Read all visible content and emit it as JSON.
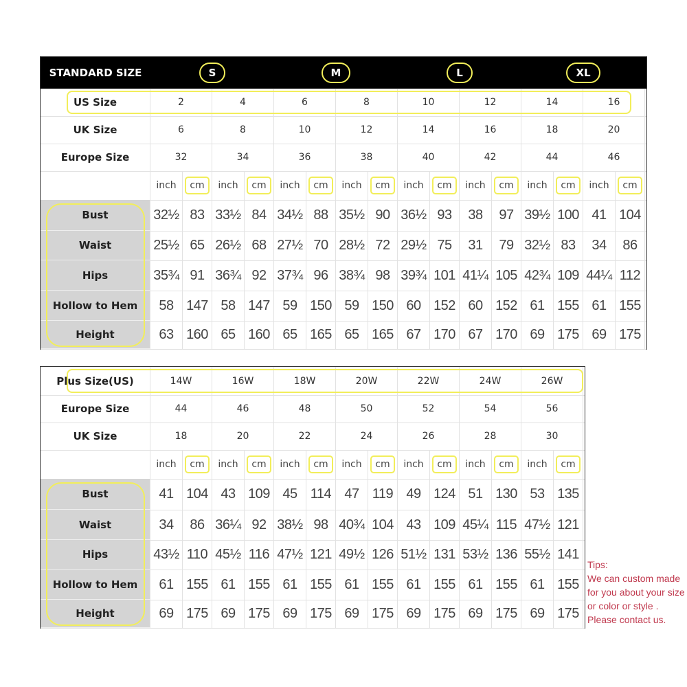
{
  "standard": {
    "header_title": "STANDARD SIZE",
    "size_groups": [
      "S",
      "M",
      "L",
      "XL"
    ],
    "size_rows": [
      {
        "label": "US Size",
        "values": [
          "2",
          "4",
          "6",
          "8",
          "10",
          "12",
          "14",
          "16"
        ]
      },
      {
        "label": "UK Size",
        "values": [
          "6",
          "8",
          "10",
          "12",
          "14",
          "16",
          "18",
          "20"
        ]
      },
      {
        "label": "Europe Size",
        "values": [
          "32",
          "34",
          "36",
          "38",
          "40",
          "42",
          "44",
          "46"
        ]
      }
    ],
    "unit_labels": {
      "inch": "inch",
      "cm": "cm"
    },
    "measure_rows": [
      {
        "label": "Bust",
        "values": [
          "32½",
          "83",
          "33½",
          "84",
          "34½",
          "88",
          "35½",
          "90",
          "36½",
          "93",
          "38",
          "97",
          "39½",
          "100",
          "41",
          "104"
        ]
      },
      {
        "label": "Waist",
        "values": [
          "25½",
          "65",
          "26½",
          "68",
          "27½",
          "70",
          "28½",
          "72",
          "29½",
          "75",
          "31",
          "79",
          "32½",
          "83",
          "34",
          "86"
        ]
      },
      {
        "label": "Hips",
        "values": [
          "35¾",
          "91",
          "36¾",
          "92",
          "37¾",
          "96",
          "38¾",
          "98",
          "39¾",
          "101",
          "41¼",
          "105",
          "42¾",
          "109",
          "44¼",
          "112"
        ]
      },
      {
        "label": "Hollow to Hem",
        "values": [
          "58",
          "147",
          "58",
          "147",
          "59",
          "150",
          "59",
          "150",
          "60",
          "152",
          "60",
          "152",
          "61",
          "155",
          "61",
          "155"
        ]
      },
      {
        "label": "Height",
        "values": [
          "63",
          "160",
          "65",
          "160",
          "65",
          "165",
          "65",
          "165",
          "67",
          "170",
          "67",
          "170",
          "69",
          "175",
          "69",
          "175"
        ]
      }
    ]
  },
  "plus": {
    "size_rows": [
      {
        "label": "Plus Size(US)",
        "values": [
          "14W",
          "16W",
          "18W",
          "20W",
          "22W",
          "24W",
          "26W"
        ]
      },
      {
        "label": "Europe Size",
        "values": [
          "44",
          "46",
          "48",
          "50",
          "52",
          "54",
          "56"
        ]
      },
      {
        "label": "UK Size",
        "values": [
          "18",
          "20",
          "22",
          "24",
          "26",
          "28",
          "30"
        ]
      }
    ],
    "unit_labels": {
      "inch": "inch",
      "cm": "cm"
    },
    "measure_rows": [
      {
        "label": "Bust",
        "values": [
          "41",
          "104",
          "43",
          "109",
          "45",
          "114",
          "47",
          "119",
          "49",
          "124",
          "51",
          "130",
          "53",
          "135"
        ]
      },
      {
        "label": "Waist",
        "values": [
          "34",
          "86",
          "36¼",
          "92",
          "38½",
          "98",
          "40¾",
          "104",
          "43",
          "109",
          "45¼",
          "115",
          "47½",
          "121"
        ]
      },
      {
        "label": "Hips",
        "values": [
          "43½",
          "110",
          "45½",
          "116",
          "47½",
          "121",
          "49½",
          "126",
          "51½",
          "131",
          "53½",
          "136",
          "55½",
          "141"
        ]
      },
      {
        "label": "Hollow to Hem",
        "values": [
          "61",
          "155",
          "61",
          "155",
          "61",
          "155",
          "61",
          "155",
          "61",
          "155",
          "61",
          "155",
          "61",
          "155"
        ]
      },
      {
        "label": "Height",
        "values": [
          "69",
          "175",
          "69",
          "175",
          "69",
          "175",
          "69",
          "175",
          "69",
          "175",
          "69",
          "175",
          "69",
          "175"
        ]
      }
    ]
  },
  "tips": {
    "title": "Tips:",
    "lines": [
      "We can custom made",
      "for you about your size",
      "or color or style .",
      "Please contact us."
    ]
  },
  "colors": {
    "highlight": "#f2ee5a",
    "header_bg": "#000000",
    "label_bg": "#d4d4d4",
    "tips_text": "#c0394e"
  }
}
